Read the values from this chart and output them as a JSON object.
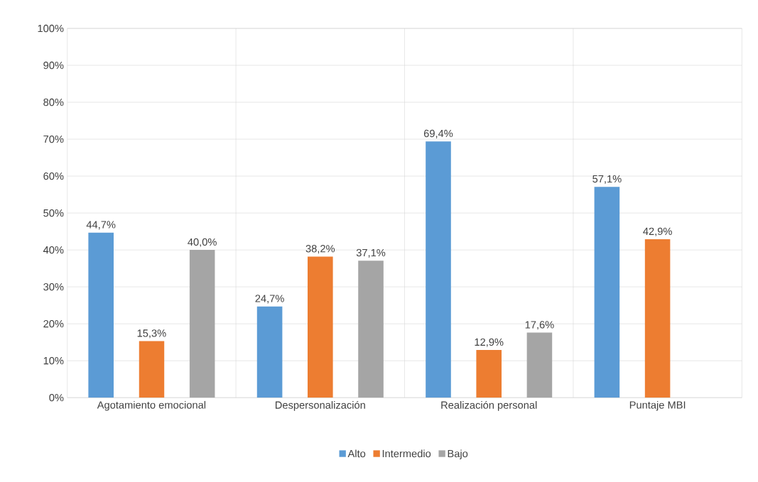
{
  "chart_data": {
    "type": "bar",
    "categories": [
      "Agotamiento emocional",
      "Despersonalización",
      "Realización personal",
      "Puntaje MBI"
    ],
    "series": [
      {
        "name": "Alto",
        "color": "#5b9bd5",
        "values": [
          44.7,
          24.7,
          69.4,
          57.1
        ],
        "value_labels": [
          "44,7%",
          "24,7%",
          "69,4%",
          "57,1%"
        ]
      },
      {
        "name": "Intermedio",
        "color": "#ed7d31",
        "values": [
          15.3,
          38.2,
          12.9,
          42.9
        ],
        "value_labels": [
          "15,3%",
          "38,2%",
          "12,9%",
          "42,9%"
        ]
      },
      {
        "name": "Bajo",
        "color": "#a5a5a5",
        "values": [
          40.0,
          37.1,
          17.6,
          null
        ],
        "value_labels": [
          "40,0%",
          "37,1%",
          "17,6%",
          null
        ]
      }
    ],
    "ylim": [
      0,
      100
    ],
    "yticks": [
      {
        "value": 0,
        "label": "0%"
      },
      {
        "value": 10,
        "label": "10%"
      },
      {
        "value": 20,
        "label": "20%"
      },
      {
        "value": 30,
        "label": "30%"
      },
      {
        "value": 40,
        "label": "40%"
      },
      {
        "value": 50,
        "label": "50%"
      },
      {
        "value": 60,
        "label": "60%"
      },
      {
        "value": 70,
        "label": "70%"
      },
      {
        "value": 80,
        "label": "80%"
      },
      {
        "value": 90,
        "label": "90%"
      },
      {
        "value": 100,
        "label": "100%"
      }
    ],
    "grid": true,
    "legend": "bottom"
  }
}
